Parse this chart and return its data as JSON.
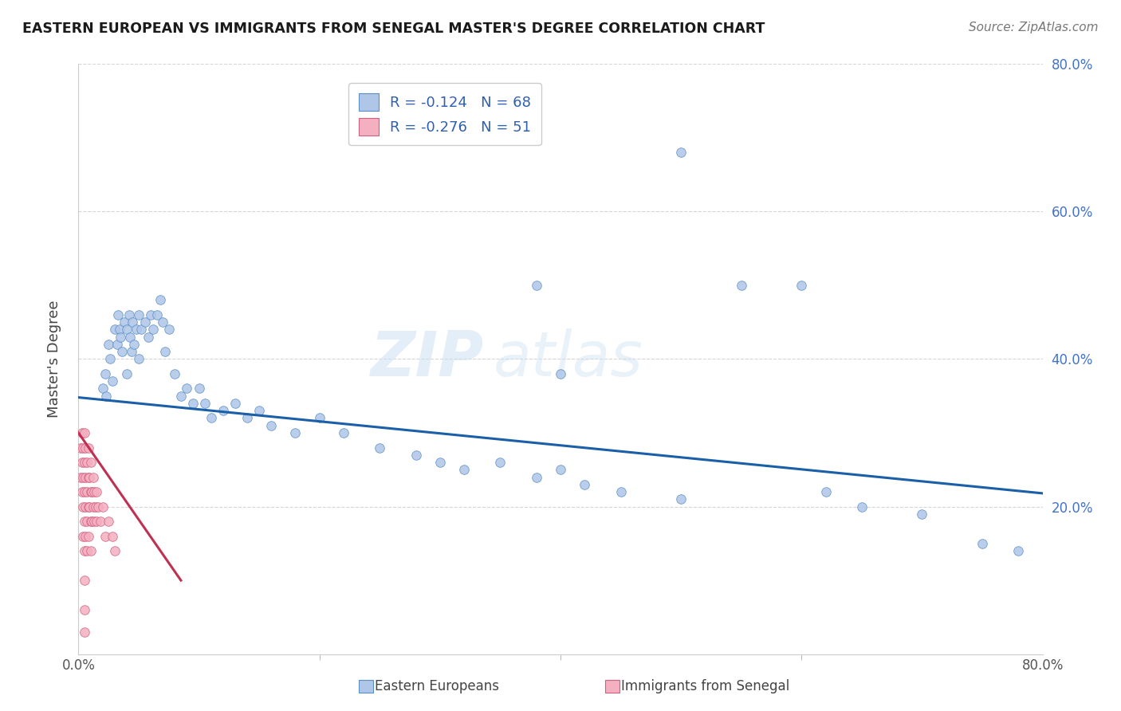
{
  "title": "EASTERN EUROPEAN VS IMMIGRANTS FROM SENEGAL MASTER'S DEGREE CORRELATION CHART",
  "source": "Source: ZipAtlas.com",
  "ylabel": "Master's Degree",
  "legend_label1": "Eastern Europeans",
  "legend_label2": "Immigrants from Senegal",
  "r1": -0.124,
  "n1": 68,
  "r2": -0.276,
  "n2": 51,
  "xlim": [
    0.0,
    0.8
  ],
  "ylim": [
    0.0,
    0.8
  ],
  "color_blue": "#aec6e8",
  "color_pink": "#f4afc0",
  "edge_blue": "#5b8ec4",
  "edge_pink": "#d06080",
  "trendline_blue": "#1a5fa8",
  "trendline_pink": "#c03050",
  "background": "#ffffff",
  "blue_x": [
    0.02,
    0.022,
    0.023,
    0.025,
    0.026,
    0.028,
    0.03,
    0.032,
    0.033,
    0.034,
    0.035,
    0.036,
    0.038,
    0.04,
    0.04,
    0.042,
    0.043,
    0.044,
    0.045,
    0.046,
    0.048,
    0.05,
    0.05,
    0.052,
    0.055,
    0.058,
    0.06,
    0.062,
    0.065,
    0.068,
    0.07,
    0.072,
    0.075,
    0.08,
    0.085,
    0.09,
    0.095,
    0.1,
    0.105,
    0.11,
    0.12,
    0.13,
    0.14,
    0.15,
    0.16,
    0.18,
    0.2,
    0.22,
    0.25,
    0.28,
    0.3,
    0.32,
    0.35,
    0.38,
    0.4,
    0.42,
    0.45,
    0.5,
    0.38,
    0.4,
    0.5,
    0.55,
    0.6,
    0.62,
    0.65,
    0.7,
    0.75,
    0.78
  ],
  "blue_y": [
    0.36,
    0.38,
    0.35,
    0.42,
    0.4,
    0.37,
    0.44,
    0.42,
    0.46,
    0.44,
    0.43,
    0.41,
    0.45,
    0.44,
    0.38,
    0.46,
    0.43,
    0.41,
    0.45,
    0.42,
    0.44,
    0.46,
    0.4,
    0.44,
    0.45,
    0.43,
    0.46,
    0.44,
    0.46,
    0.48,
    0.45,
    0.41,
    0.44,
    0.38,
    0.35,
    0.36,
    0.34,
    0.36,
    0.34,
    0.32,
    0.33,
    0.34,
    0.32,
    0.33,
    0.31,
    0.3,
    0.32,
    0.3,
    0.28,
    0.27,
    0.26,
    0.25,
    0.26,
    0.24,
    0.25,
    0.23,
    0.22,
    0.21,
    0.5,
    0.38,
    0.68,
    0.5,
    0.5,
    0.22,
    0.2,
    0.19,
    0.15,
    0.14
  ],
  "pink_x": [
    0.002,
    0.002,
    0.003,
    0.003,
    0.003,
    0.004,
    0.004,
    0.004,
    0.004,
    0.005,
    0.005,
    0.005,
    0.005,
    0.005,
    0.005,
    0.005,
    0.005,
    0.006,
    0.006,
    0.006,
    0.006,
    0.007,
    0.007,
    0.007,
    0.007,
    0.008,
    0.008,
    0.008,
    0.008,
    0.009,
    0.009,
    0.01,
    0.01,
    0.01,
    0.01,
    0.011,
    0.011,
    0.012,
    0.012,
    0.013,
    0.013,
    0.014,
    0.015,
    0.015,
    0.016,
    0.018,
    0.02,
    0.022,
    0.025,
    0.028,
    0.03
  ],
  "pink_y": [
    0.28,
    0.24,
    0.3,
    0.26,
    0.22,
    0.28,
    0.24,
    0.2,
    0.16,
    0.3,
    0.26,
    0.22,
    0.18,
    0.14,
    0.1,
    0.06,
    0.03,
    0.28,
    0.24,
    0.2,
    0.16,
    0.26,
    0.22,
    0.18,
    0.14,
    0.28,
    0.24,
    0.2,
    0.16,
    0.24,
    0.2,
    0.26,
    0.22,
    0.18,
    0.14,
    0.22,
    0.18,
    0.24,
    0.2,
    0.22,
    0.18,
    0.2,
    0.22,
    0.18,
    0.2,
    0.18,
    0.2,
    0.16,
    0.18,
    0.16,
    0.14
  ],
  "blue_trend_x": [
    0.0,
    0.8
  ],
  "blue_trend_y": [
    0.348,
    0.218
  ],
  "pink_trend_x": [
    0.0,
    0.085
  ],
  "pink_trend_y": [
    0.3,
    0.1
  ]
}
